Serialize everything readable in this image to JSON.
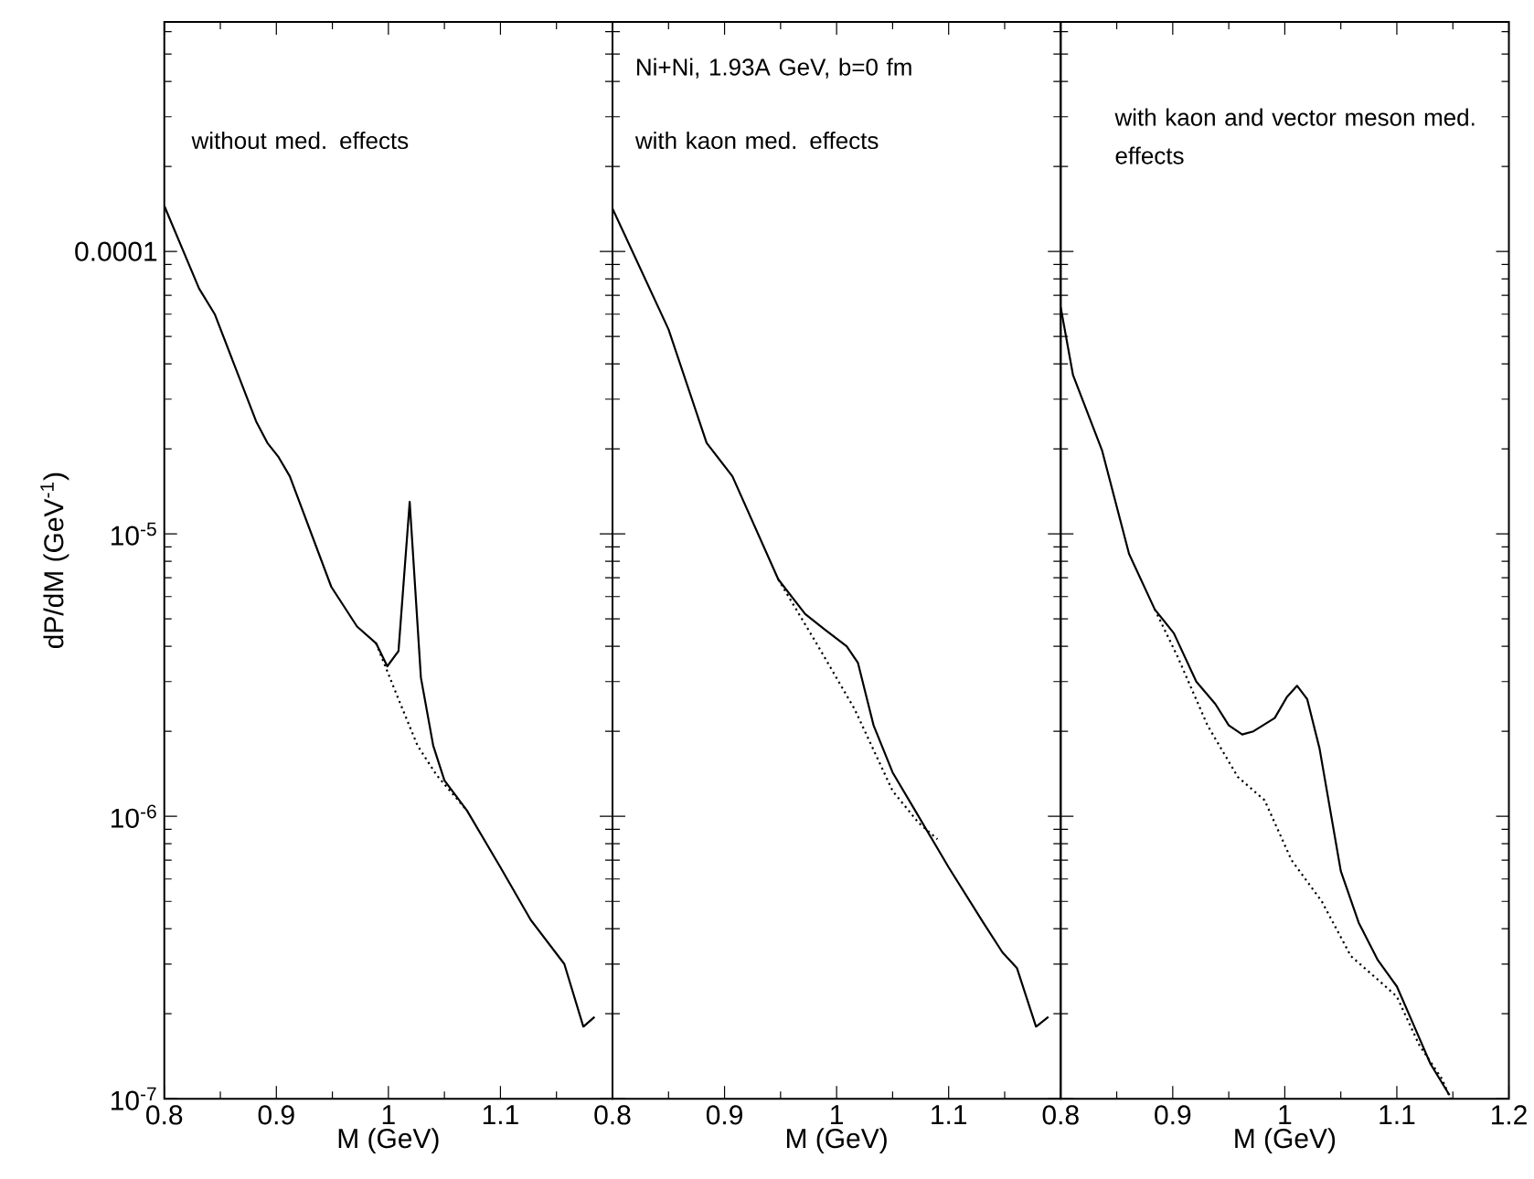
{
  "chart_data": [
    {
      "type": "line",
      "log": "y",
      "xlabel": "M (GeV)",
      "ylabel": "dP/dM  (GeV$^{-1}$)",
      "xlim": [
        0.8,
        1.2
      ],
      "ylim": [
        1e-07,
        0.00065
      ],
      "xticks": [
        0.8,
        0.9,
        1,
        1.1,
        {
          "value": 1.2,
          "label": null
        }
      ],
      "yticks": [
        {
          "value": 1e-07,
          "label": "10$^{-7}$"
        },
        {
          "value": 1e-06,
          "label": "10$^{-6}$"
        },
        {
          "value": 1e-05,
          "label": "10$^{-5}$"
        },
        {
          "value": 0.0001,
          "label": "0.0001"
        }
      ],
      "annotations": [
        "without med. effects"
      ],
      "series": [
        {
          "color": "#000000",
          "line_style": "solid",
          "x": [
            0.8,
            0.831,
            0.845,
            0.882,
            0.892,
            0.902,
            0.912,
            0.949,
            0.972,
            0.989,
            0.999,
            1.009,
            1.019,
            1.029,
            1.04,
            1.05,
            1.07,
            1.1,
            1.127,
            1.157,
            1.174,
            1.184
          ],
          "values": [
            0.000145,
            7.4e-05,
            6e-05,
            2.5e-05,
            2.1e-05,
            1.87e-05,
            1.6e-05,
            6.5e-06,
            4.7e-06,
            4.1e-06,
            3.4e-06,
            3.85e-06,
            1.3e-05,
            3.1e-06,
            1.78e-06,
            1.34e-06,
            1.05e-06,
            6.6e-07,
            4.3e-07,
            3e-07,
            1.8e-07,
            1.95e-07
          ]
        },
        {
          "color": "#000000",
          "line_style": "dotted",
          "x": [
            0.989,
            1.009,
            1.026,
            1.043,
            1.07
          ],
          "values": [
            4.1e-06,
            2.6e-06,
            1.78e-06,
            1.4e-06,
            1.05e-06
          ]
        }
      ]
    },
    {
      "type": "line",
      "log": "y",
      "xlabel": "M (GeV)",
      "xlim": [
        0.8,
        1.2
      ],
      "ylim": [
        1e-07,
        0.00065
      ],
      "tick_labels": "x",
      "xticks": [
        0.8,
        0.9,
        1,
        1.1,
        {
          "value": 1.2,
          "label": null
        }
      ],
      "yticks": [
        1e-07,
        1e-06,
        1e-05,
        0.0001
      ],
      "annotations": [
        "Ni+Ni, 1.93A GeV, b=0 fm",
        "with kaon med. effects"
      ],
      "series": [
        {
          "color": "#000000",
          "line_style": "solid",
          "x": [
            0.8,
            0.85,
            0.884,
            0.907,
            0.948,
            0.972,
            0.989,
            1.009,
            1.019,
            1.033,
            1.05,
            1.07,
            1.1,
            1.131,
            1.148,
            1.161,
            1.178,
            1.189
          ],
          "values": [
            0.000142,
            5.3e-05,
            2.1e-05,
            1.6e-05,
            6.9e-06,
            5.2e-06,
            4.6e-06,
            4e-06,
            3.5e-06,
            2.1e-06,
            1.43e-06,
            1.05e-06,
            6.6e-07,
            4.2e-07,
            3.3e-07,
            2.9e-07,
            1.8e-07,
            1.95e-07
          ]
        },
        {
          "color": "#000000",
          "line_style": "dotted",
          "x": [
            0.948,
            0.982,
            1.016,
            1.05,
            1.073,
            1.09
          ],
          "values": [
            6.9e-06,
            4.1e-06,
            2.4e-06,
            1.23e-06,
            9.5e-07,
            8.3e-07
          ]
        }
      ]
    },
    {
      "type": "line",
      "log": "y",
      "xlabel": "M (GeV)",
      "xlim": [
        0.8,
        1.2
      ],
      "ylim": [
        1e-07,
        0.00065
      ],
      "tick_labels": "x",
      "xticks": [
        0.8,
        0.9,
        1,
        1.1,
        1.2
      ],
      "yticks": [
        1e-07,
        1e-06,
        1e-05,
        0.0001
      ],
      "annotations": [
        "with kaon and vector meson med. effects"
      ],
      "series": [
        {
          "color": "#000000",
          "line_style": "solid",
          "x": [
            0.8,
            0.811,
            0.837,
            0.861,
            0.884,
            0.901,
            0.921,
            0.938,
            0.95,
            0.962,
            0.972,
            0.991,
            1.002,
            1.011,
            1.02,
            1.031,
            1.05,
            1.066,
            1.083,
            1.1,
            1.117,
            1.13,
            1.147
          ],
          "values": [
            6.35e-05,
            3.65e-05,
            1.97e-05,
            8.5e-06,
            5.4e-06,
            4.45e-06,
            3e-06,
            2.5e-06,
            2.1e-06,
            1.95e-06,
            2e-06,
            2.23e-06,
            2.65e-06,
            2.9e-06,
            2.6e-06,
            1.74e-06,
            6.4e-07,
            4.2e-07,
            3.1e-07,
            2.5e-07,
            1.75e-07,
            1.33e-07,
            1.03e-07
          ]
        },
        {
          "color": "#000000",
          "line_style": "dotted",
          "x": [
            0.884,
            0.904,
            0.931,
            0.958,
            0.982,
            1.006,
            1.033,
            1.059,
            1.085,
            1.1,
            1.12,
            1.14,
            1.148
          ],
          "values": [
            5.4e-06,
            3.7e-06,
            2.1e-06,
            1.38e-06,
            1.14e-06,
            7e-07,
            5e-07,
            3.2e-07,
            2.6e-07,
            2.3e-07,
            1.55e-07,
            1.18e-07,
            1e-07
          ]
        }
      ]
    }
  ]
}
